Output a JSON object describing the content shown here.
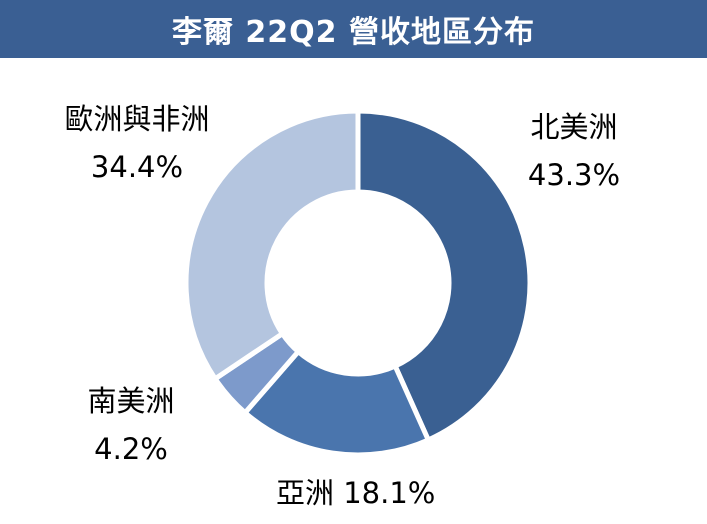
{
  "title": "李爾 22Q2 營收地區分布",
  "colors": {
    "title_bar": "#3a5f93",
    "north_america": "#3a6092",
    "asia": "#4a75ad",
    "south_america": "#7d9acb",
    "europe_africa": "#b4c5df"
  },
  "chart_data": {
    "type": "pie",
    "donut": true,
    "title": "李爾 22Q2 營收地區分布",
    "slices": [
      {
        "name": "北美洲",
        "value": 43.3,
        "label": "43.3%"
      },
      {
        "name": "亞洲",
        "value": 18.1,
        "label": "18.1%"
      },
      {
        "name": "南美洲",
        "value": 4.2,
        "label": "4.2%"
      },
      {
        "name": "歐洲與非洲",
        "value": 34.4,
        "label": "34.4%"
      }
    ]
  }
}
